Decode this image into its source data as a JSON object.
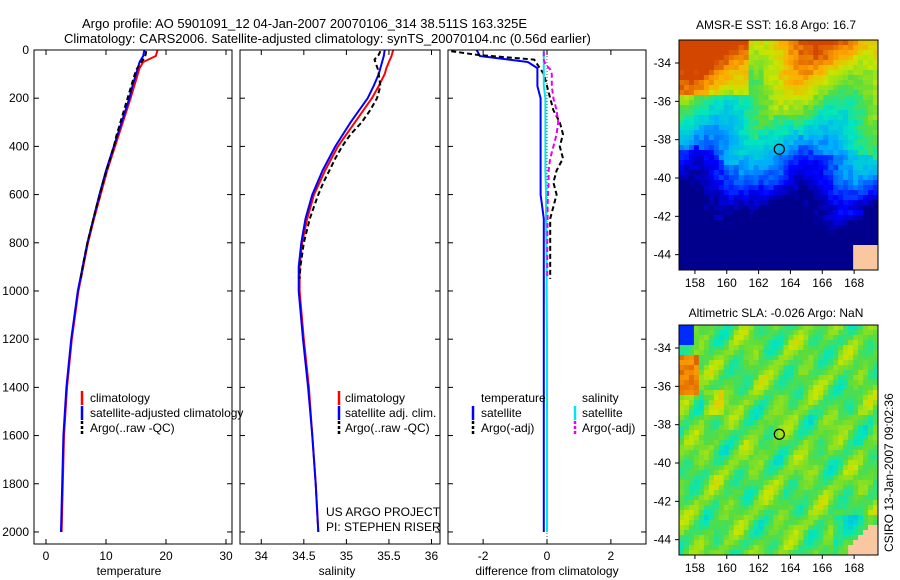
{
  "header": {
    "line1": "Argo profile: AO 5901091_12 04-Jan-2007 20070106_314 38.511S 163.325E",
    "line2": "Climatology: CARS2006. Satellite-adjusted climatology: synTS_20070104.nc (0.56d earlier)"
  },
  "side_label": "CSIRO 13-Jan-2007 09:02:36",
  "colors": {
    "climatology": "#ff0000",
    "satellite": "#0000ff",
    "argo": "#000000",
    "salinity_satellite": "#00e5ee",
    "salinity_argo": "#ee00ee"
  },
  "chart_data": [
    {
      "id": "temperature",
      "type": "line",
      "xlabel": "temperature",
      "ylabel": "",
      "xlim": [
        -2,
        31
      ],
      "ylim": [
        2050,
        0
      ],
      "x_ticks": [
        0,
        10,
        20,
        30
      ],
      "y_ticks": [
        0,
        200,
        400,
        600,
        800,
        1000,
        1200,
        1400,
        1600,
        1800,
        2000
      ],
      "legend": [
        "climatology",
        "satellite-adjusted climatology",
        "Argo(..raw -QC)"
      ],
      "legend_position": "lower-right",
      "series": [
        {
          "name": "climatology",
          "color": "#ff0000",
          "dash": false,
          "depth": [
            0,
            25,
            50,
            75,
            100,
            150,
            200,
            300,
            400,
            500,
            600,
            700,
            800,
            900,
            1000,
            1200,
            1400,
            1600,
            1800,
            2000
          ],
          "values": [
            18.6,
            18.3,
            16.2,
            15.6,
            15.3,
            14.7,
            14.1,
            12.8,
            11.5,
            10.2,
            9.1,
            8.0,
            7.0,
            6.2,
            5.4,
            4.3,
            3.5,
            3.0,
            2.8,
            2.6
          ]
        },
        {
          "name": "satellite-adjusted climatology",
          "color": "#0000ff",
          "dash": false,
          "depth": [
            0,
            25,
            50,
            75,
            100,
            150,
            200,
            300,
            400,
            500,
            600,
            700,
            800,
            900,
            1000,
            1200,
            1400,
            1600,
            1800,
            2000
          ],
          "values": [
            16.4,
            16.2,
            15.6,
            15.3,
            15.0,
            14.4,
            13.9,
            12.6,
            11.3,
            10.0,
            8.9,
            7.9,
            6.9,
            6.1,
            5.3,
            4.2,
            3.4,
            2.9,
            2.7,
            2.5
          ]
        },
        {
          "name": "Argo(..raw -QC)",
          "color": "#000000",
          "dash": true,
          "depth": [
            5,
            20,
            40,
            60,
            80,
            100,
            150,
            200,
            250,
            300,
            350,
            400,
            450,
            500,
            550,
            600,
            650,
            700,
            800,
            900,
            950
          ],
          "values": [
            16.7,
            16.6,
            16.2,
            15.6,
            15.1,
            14.8,
            14.2,
            13.6,
            13.0,
            12.4,
            11.8,
            11.3,
            10.7,
            10.1,
            9.5,
            9.0,
            8.4,
            7.9,
            6.9,
            6.1,
            5.8
          ]
        }
      ]
    },
    {
      "id": "salinity",
      "type": "line",
      "xlabel": "salinity",
      "ylabel": "",
      "xlim": [
        33.75,
        36.1
      ],
      "ylim": [
        2050,
        0
      ],
      "x_ticks": [
        34,
        34.5,
        35,
        35.5,
        36
      ],
      "legend": [
        "climatology",
        "satellite adj. clim.",
        "Argo(..raw -QC)"
      ],
      "legend_position": "lower-right",
      "annotation": [
        "US ARGO PROJECT",
        "PI: STEPHEN RISER"
      ],
      "series": [
        {
          "name": "climatology",
          "color": "#ff0000",
          "dash": false,
          "depth": [
            0,
            25,
            50,
            75,
            100,
            150,
            200,
            300,
            400,
            500,
            600,
            700,
            800,
            900,
            1000,
            1200,
            1400,
            1600,
            1800,
            2000
          ],
          "values": [
            35.55,
            35.53,
            35.5,
            35.47,
            35.45,
            35.38,
            35.3,
            35.1,
            34.9,
            34.75,
            34.62,
            34.54,
            34.48,
            34.45,
            34.45,
            34.5,
            34.56,
            34.6,
            34.64,
            34.67
          ]
        },
        {
          "name": "satellite adj. clim.",
          "color": "#0000ff",
          "dash": false,
          "depth": [
            0,
            25,
            50,
            75,
            100,
            150,
            200,
            300,
            400,
            500,
            600,
            700,
            800,
            900,
            1000,
            1200,
            1400,
            1600,
            1800,
            2000
          ],
          "values": [
            35.45,
            35.44,
            35.42,
            35.4,
            35.38,
            35.32,
            35.25,
            35.05,
            34.87,
            34.72,
            34.6,
            34.52,
            34.47,
            34.44,
            34.44,
            34.49,
            34.55,
            34.6,
            34.64,
            34.67
          ]
        },
        {
          "name": "Argo(..raw -QC)",
          "color": "#000000",
          "dash": true,
          "depth": [
            5,
            20,
            40,
            60,
            80,
            100,
            150,
            200,
            250,
            300,
            350,
            400,
            450,
            500,
            550,
            600,
            650,
            700,
            800,
            900,
            950
          ],
          "values": [
            35.4,
            35.38,
            35.33,
            35.35,
            35.37,
            35.38,
            35.4,
            35.36,
            35.28,
            35.18,
            35.05,
            34.95,
            34.87,
            34.8,
            34.73,
            34.67,
            34.62,
            34.57,
            34.5,
            34.46,
            34.45
          ]
        }
      ]
    },
    {
      "id": "difference",
      "type": "line",
      "xlabel": "difference from climatology",
      "ylabel": "",
      "xlim": [
        -3.1,
        3.1
      ],
      "ylim": [
        2050,
        0
      ],
      "x_ticks": [
        -2,
        0,
        2
      ],
      "legend_left_title": "temperature",
      "legend_right_title": "salinity",
      "legend_left": [
        "satellite",
        "Argo(-adj)"
      ],
      "legend_right": [
        "satellite",
        "Argo(-adj)"
      ],
      "legend_position": "lower",
      "series": [
        {
          "name": "temperature satellite",
          "color": "#0000ff",
          "dash": false,
          "depth": [
            0,
            25,
            50,
            75,
            100,
            150,
            200,
            300,
            400,
            500,
            600,
            700,
            800,
            900,
            1000,
            1200,
            1400,
            1600,
            1800,
            2000
          ],
          "values": [
            -2.2,
            -2.1,
            -0.6,
            -0.3,
            -0.3,
            -0.3,
            -0.2,
            -0.2,
            -0.2,
            -0.2,
            -0.2,
            -0.1,
            -0.1,
            -0.1,
            -0.1,
            -0.1,
            -0.1,
            -0.1,
            -0.1,
            -0.1
          ]
        },
        {
          "name": "temperature Argo(-adj)",
          "color": "#000000",
          "dash": true,
          "depth": [
            5,
            20,
            40,
            60,
            80,
            100,
            150,
            200,
            250,
            300,
            350,
            400,
            450,
            500,
            550,
            600,
            650,
            700,
            800,
            900,
            950
          ],
          "values": [
            -3.0,
            -2.2,
            -0.4,
            -0.3,
            -0.2,
            -0.1,
            0.0,
            0.1,
            0.2,
            0.4,
            0.5,
            0.4,
            0.5,
            0.3,
            0.2,
            0.3,
            0.2,
            0.1,
            0.1,
            0.1,
            0.1
          ]
        },
        {
          "name": "salinity satellite",
          "color": "#00e5ee",
          "dash": false,
          "depth": [
            0,
            25,
            50,
            75,
            100,
            150,
            200,
            300,
            400,
            500,
            600,
            700,
            800,
            900,
            1000,
            1200,
            1400,
            1600,
            1800,
            2000
          ],
          "values": [
            -0.1,
            -0.1,
            -0.1,
            -0.1,
            -0.1,
            -0.1,
            -0.05,
            -0.05,
            -0.05,
            -0.05,
            -0.03,
            -0.03,
            -0.02,
            -0.01,
            -0.01,
            0,
            0,
            0,
            0,
            0
          ]
        },
        {
          "name": "salinity Argo(-adj)",
          "color": "#ee00ee",
          "dash": true,
          "depth": [
            5,
            20,
            40,
            60,
            80,
            100,
            150,
            200,
            250,
            300,
            350,
            400,
            450,
            500,
            550,
            600,
            650,
            700,
            800,
            900,
            950
          ],
          "values": [
            -0.1,
            -0.1,
            -0.1,
            -0.05,
            0.1,
            0.15,
            0.15,
            0.2,
            0.3,
            0.35,
            0.3,
            0.2,
            0.1,
            0.05,
            0.05,
            0.03,
            0.02,
            0.02,
            0.01,
            0.01,
            0.01
          ]
        }
      ]
    },
    {
      "id": "sst_map",
      "type": "heatmap",
      "title": "AMSR-E SST: 16.8  Argo: 16.7",
      "x_ticks": [
        158,
        160,
        162,
        164,
        166,
        168
      ],
      "y_ticks": [
        -34,
        -36,
        -38,
        -40,
        -42,
        -44
      ],
      "xlim": [
        157,
        169.5
      ],
      "ylim": [
        -32.8,
        -44.8
      ],
      "marker": {
        "lon": 163.3,
        "lat": -38.5
      }
    },
    {
      "id": "sla_map",
      "type": "heatmap",
      "title": "Altimetric SLA: -0.026  Argo: NaN",
      "x_ticks": [
        158,
        160,
        162,
        164,
        166,
        168
      ],
      "y_ticks": [
        -34,
        -36,
        -38,
        -40,
        -42,
        -44
      ],
      "xlim": [
        157,
        169.5
      ],
      "ylim": [
        -32.8,
        -44.8
      ],
      "marker": {
        "lon": 163.3,
        "lat": -38.5
      }
    }
  ]
}
